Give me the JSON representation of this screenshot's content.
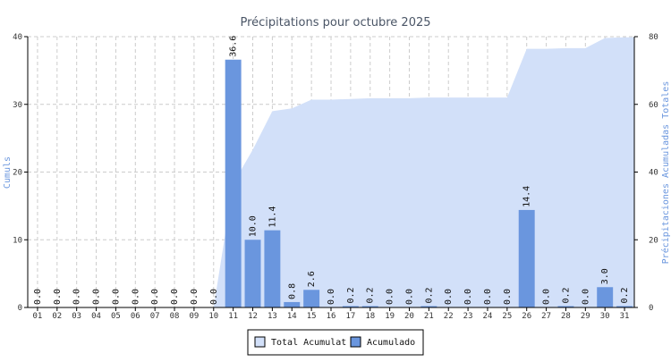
{
  "chart_data": {
    "type": "bar",
    "title": "Précipitations pour octubre 2025",
    "ylabel_left": "Cumuls",
    "ylabel_right": "Précipitaciones Acumuladas Totales",
    "categories": [
      "01",
      "02",
      "03",
      "04",
      "05",
      "06",
      "07",
      "08",
      "09",
      "10",
      "11",
      "12",
      "13",
      "14",
      "15",
      "16",
      "17",
      "18",
      "19",
      "20",
      "21",
      "22",
      "23",
      "24",
      "25",
      "26",
      "27",
      "28",
      "29",
      "30",
      "31"
    ],
    "ylim_left": [
      0,
      40
    ],
    "yticks_left": [
      0,
      10,
      20,
      30,
      40
    ],
    "ylim_right": [
      0,
      80
    ],
    "yticks_right": [
      0,
      20,
      40,
      60,
      80
    ],
    "grid": true,
    "legend_position": "bottom-center",
    "series": [
      {
        "name": "Total Acumulat",
        "kind": "area",
        "axis": "right",
        "color": "#d2e0f9",
        "values": [
          0,
          0,
          0,
          0,
          0,
          0,
          0,
          0,
          0,
          0,
          36.6,
          46.6,
          58.0,
          58.8,
          61.4,
          61.4,
          61.6,
          61.8,
          61.8,
          61.8,
          62.0,
          62.0,
          62.0,
          62.0,
          62.0,
          76.4,
          76.4,
          76.6,
          76.6,
          79.6,
          79.8
        ]
      },
      {
        "name": "Acumulado",
        "kind": "bar",
        "axis": "left",
        "color": "#6a96de",
        "values": [
          0.0,
          0.0,
          0.0,
          0.0,
          0.0,
          0.0,
          0.0,
          0.0,
          0.0,
          0.0,
          36.6,
          10.0,
          11.4,
          0.8,
          2.6,
          0.0,
          0.2,
          0.2,
          0.0,
          0.0,
          0.2,
          0.0,
          0.0,
          0.0,
          0.0,
          14.4,
          0.0,
          0.2,
          0.0,
          3.0,
          0.2
        ],
        "labels": [
          "0.0",
          "0.0",
          "0.0",
          "0.0",
          "0.0",
          "0.0",
          "0.0",
          "0.0",
          "0.0",
          "0.0",
          "36.6",
          "10.0",
          "11.4",
          "0.8",
          "2.6",
          "0.0",
          "0.2",
          "0.2",
          "0.0",
          "0.0",
          "0.2",
          "0.0",
          "0.0",
          "0.0",
          "0.0",
          "14.4",
          "0.0",
          "0.2",
          "0.0",
          "3.0",
          "0.2"
        ]
      }
    ],
    "colors": {
      "title": "#4a5566",
      "axis_label": "#6a96de",
      "grid": "#cccccc",
      "axis": "#000000"
    }
  }
}
